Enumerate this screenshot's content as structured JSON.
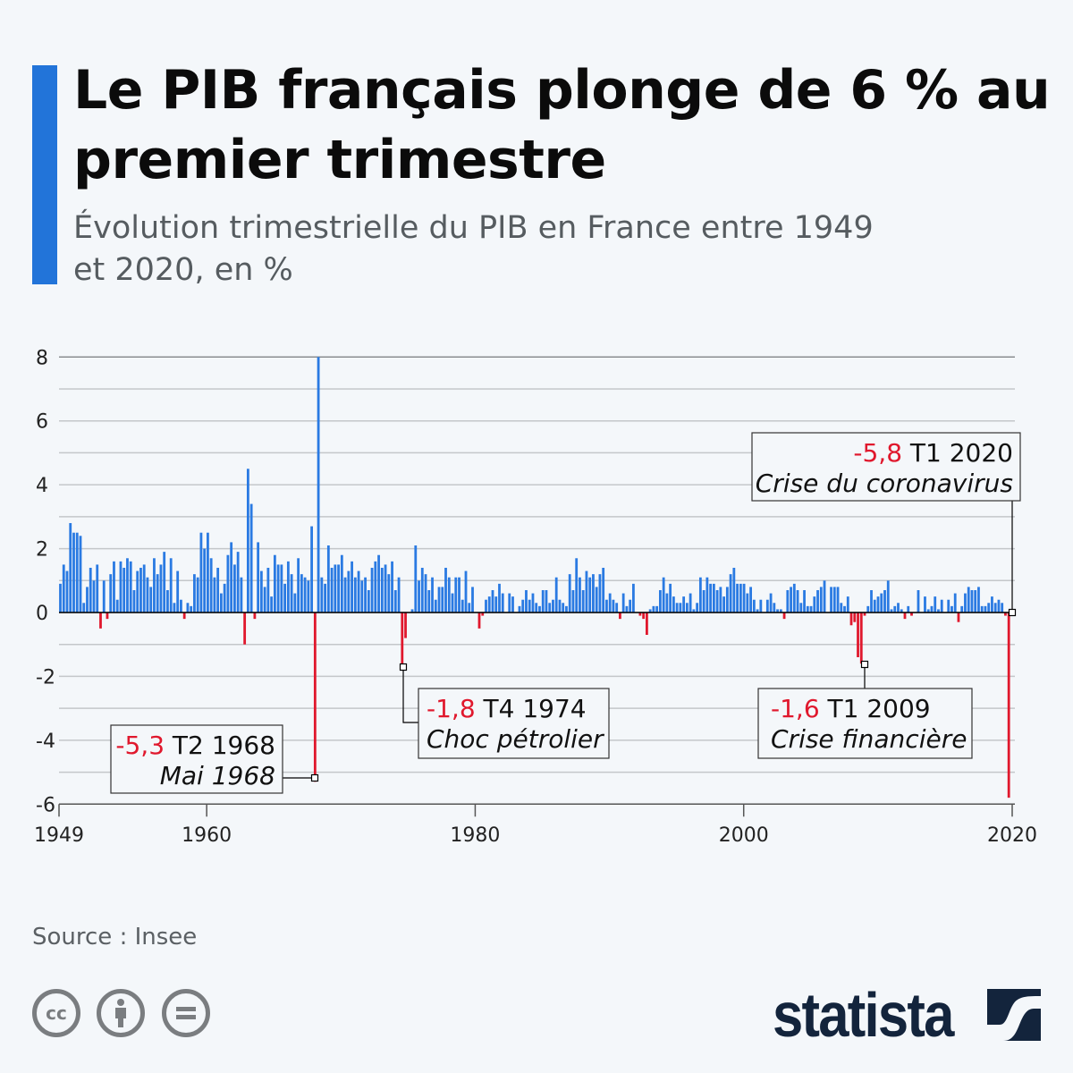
{
  "header": {
    "title": "Le PIB français plonge de 6 % au premier trimestre",
    "subtitle": "Évolution trimestrielle du PIB en France entre 1949 et 2020, en %"
  },
  "footer": {
    "source": "Source : Insee",
    "license_icons": [
      "cc-icon",
      "attribution-icon",
      "no-derivatives-icon"
    ],
    "logo": "statista"
  },
  "colors": {
    "accent": "#2274d9",
    "positive": "#2a7ae2",
    "negative": "#e0182d",
    "logo": "#13243c"
  },
  "chart_data": {
    "type": "bar",
    "title": "",
    "xlabel": "",
    "ylabel": "",
    "frequency": "quarterly",
    "first_period": "T2 1949",
    "last_period": "T1 2020",
    "ylim": [
      -6,
      8
    ],
    "yticks": [
      "8",
      "6",
      "4",
      "2",
      "0",
      "-2",
      "-4",
      "-6"
    ],
    "xticks": [
      "1949",
      "1960",
      "1980",
      "2000",
      "2020"
    ],
    "grid": true,
    "values": [
      0.9,
      1.5,
      1.3,
      2.8,
      2.5,
      2.5,
      2.4,
      0.3,
      0.8,
      1.4,
      1.0,
      1.5,
      -0.5,
      1.0,
      -0.2,
      1.2,
      1.6,
      0.4,
      1.6,
      1.4,
      1.7,
      1.6,
      0.7,
      1.3,
      1.4,
      1.5,
      1.1,
      0.8,
      1.7,
      1.2,
      1.5,
      1.9,
      0.7,
      1.7,
      0.3,
      1.3,
      0.4,
      -0.2,
      0.3,
      0.2,
      1.2,
      1.1,
      2.5,
      2.0,
      2.5,
      1.7,
      1.1,
      1.4,
      0.6,
      0.9,
      1.8,
      2.2,
      1.5,
      1.9,
      1.1,
      -1.0,
      4.5,
      3.4,
      -0.2,
      2.2,
      1.3,
      0.8,
      1.4,
      0.5,
      1.8,
      1.5,
      1.5,
      0.9,
      1.6,
      1.2,
      0.6,
      1.7,
      1.2,
      1.1,
      1.0,
      2.7,
      -5.3,
      8.0,
      1.1,
      0.9,
      2.1,
      1.4,
      1.5,
      1.5,
      1.8,
      1.1,
      1.3,
      1.6,
      1.1,
      1.3,
      1.0,
      1.1,
      0.7,
      1.4,
      1.6,
      1.8,
      1.4,
      1.5,
      1.2,
      1.6,
      0.7,
      1.1,
      -1.8,
      -0.8,
      0.0,
      0.1,
      2.1,
      1.0,
      1.4,
      1.2,
      0.7,
      1.1,
      0.4,
      0.8,
      0.8,
      1.4,
      1.1,
      0.6,
      1.1,
      1.1,
      0.4,
      1.3,
      0.3,
      0.8,
      0.0,
      -0.5,
      -0.1,
      0.4,
      0.5,
      0.7,
      0.5,
      0.9,
      0.6,
      0.0,
      0.6,
      0.5,
      0.0,
      0.2,
      0.4,
      0.7,
      0.4,
      0.6,
      0.3,
      0.2,
      0.7,
      0.7,
      0.3,
      0.4,
      1.1,
      0.4,
      0.3,
      0.2,
      1.2,
      0.7,
      1.7,
      1.1,
      0.7,
      1.3,
      1.1,
      1.2,
      0.8,
      1.2,
      1.4,
      0.4,
      0.6,
      0.4,
      0.3,
      -0.2,
      0.6,
      0.2,
      0.4,
      0.9,
      0.0,
      -0.1,
      -0.2,
      -0.7,
      0.1,
      0.2,
      0.2,
      0.7,
      1.1,
      0.6,
      0.9,
      0.5,
      0.3,
      0.3,
      0.5,
      0.3,
      0.6,
      0.1,
      0.3,
      1.1,
      0.7,
      1.1,
      0.9,
      0.9,
      0.7,
      0.8,
      0.5,
      0.8,
      1.2,
      1.4,
      0.9,
      0.9,
      0.9,
      0.6,
      0.8,
      0.4,
      0.1,
      0.4,
      0.0,
      0.4,
      0.6,
      0.3,
      0.1,
      0.1,
      -0.2,
      0.7,
      0.8,
      0.9,
      0.7,
      0.3,
      0.7,
      0.2,
      0.2,
      0.5,
      0.7,
      0.8,
      1.0,
      0.0,
      0.8,
      0.8,
      0.8,
      0.3,
      0.2,
      0.5,
      -0.4,
      -0.3,
      -1.4,
      -1.6,
      -0.1,
      0.2,
      0.7,
      0.4,
      0.5,
      0.6,
      0.7,
      1.0,
      0.1,
      0.2,
      0.3,
      0.1,
      -0.2,
      0.2,
      -0.1,
      0.0,
      0.7,
      0.0,
      0.5,
      0.1,
      0.2,
      0.5,
      0.1,
      0.4,
      0.0,
      0.4,
      0.2,
      0.6,
      -0.3,
      0.2,
      0.6,
      0.8,
      0.7,
      0.7,
      0.8,
      0.2,
      0.2,
      0.3,
      0.5,
      0.3,
      0.4,
      0.3,
      -0.1,
      -5.8
    ],
    "annotations": [
      {
        "value": "-5,3",
        "period": "T2 1968",
        "label": "Mai 1968"
      },
      {
        "value": "-1,8",
        "period": "T4 1974",
        "label": "Choc pétrolier"
      },
      {
        "value": "-1,6",
        "period": "T1 2009",
        "label": "Crise financière"
      },
      {
        "value": "-5,8",
        "period": "T1 2020",
        "label": "Crise du coronavirus"
      }
    ]
  }
}
